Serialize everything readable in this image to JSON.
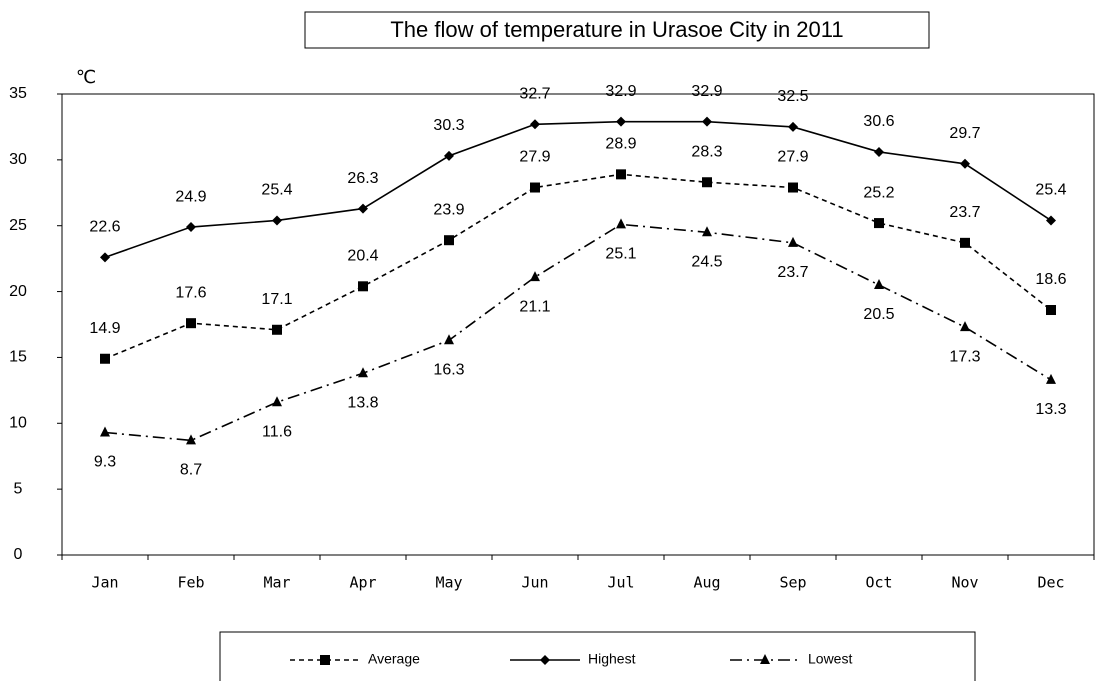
{
  "chart_data": {
    "type": "line",
    "title": "The flow of temperature in Urasoe City in 2011",
    "y_label": "℃",
    "categories": [
      "Jan",
      "Feb",
      "Mar",
      "Apr",
      "May",
      "Jun",
      "Jul",
      "Aug",
      "Sep",
      "Oct",
      "Nov",
      "Dec"
    ],
    "series": [
      {
        "name": "Average",
        "color": "#000000",
        "dash": "dashed",
        "marker": "square",
        "values": [
          14.9,
          17.6,
          17.1,
          20.4,
          23.9,
          27.9,
          28.9,
          28.3,
          27.9,
          25.2,
          23.7,
          18.6
        ]
      },
      {
        "name": "Highest",
        "color": "#000000",
        "dash": "solid",
        "marker": "diamond",
        "values": [
          22.6,
          24.9,
          25.4,
          26.3,
          30.3,
          32.7,
          32.9,
          32.9,
          32.5,
          30.6,
          29.7,
          25.4
        ]
      },
      {
        "name": "Lowest",
        "color": "#000000",
        "dash": "dashdot",
        "marker": "triangle",
        "values": [
          9.3,
          8.7,
          11.6,
          13.8,
          16.3,
          21.1,
          25.1,
          24.5,
          23.7,
          20.5,
          17.3,
          13.3
        ]
      }
    ],
    "ylim": [
      0,
      35
    ],
    "yticks": [
      0,
      5,
      10,
      15,
      20,
      25,
      30,
      35
    ],
    "grid": false,
    "legend": "bottom",
    "data_labels": true
  }
}
